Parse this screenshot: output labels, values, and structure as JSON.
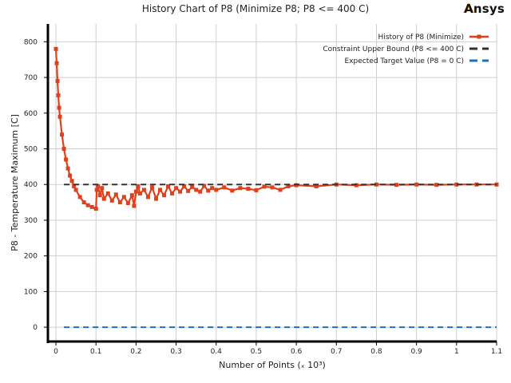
{
  "brand": {
    "name": "Ansys",
    "accent_color": "#ffb71b"
  },
  "chart_data": {
    "type": "line",
    "title": "History Chart of P8 (Minimize P8; P8 <= 400 C)",
    "xlabel": "Number of Points  (ₓ 10³)",
    "ylabel": "P8 - Temperature Maximum  [C]",
    "xlim": [
      -0.02,
      1.1
    ],
    "ylim": [
      -40,
      850
    ],
    "x_ticks": [
      0,
      0.1,
      0.2,
      0.3,
      0.4,
      0.5,
      0.6,
      0.7,
      0.8,
      0.9,
      1,
      1.1
    ],
    "x_tick_labels": [
      "0",
      "0.1",
      "0.2",
      "0.3",
      "0.4",
      "0.5",
      "0.6",
      "0.7",
      "0.8",
      "0.9",
      "1",
      "1.1"
    ],
    "y_ticks": [
      0,
      100,
      200,
      300,
      400,
      500,
      600,
      700,
      800
    ],
    "y_tick_labels": [
      "0",
      "100",
      "200",
      "300",
      "400",
      "500",
      "600",
      "700",
      "800"
    ],
    "grid": true,
    "legend_position": "top-right",
    "series": [
      {
        "name": "History of P8 (Minimize)",
        "color": "#e0401c",
        "style": "solid-with-square-markers",
        "x": [
          0,
          0.002,
          0.004,
          0.006,
          0.008,
          0.01,
          0.015,
          0.02,
          0.025,
          0.03,
          0.035,
          0.04,
          0.045,
          0.05,
          0.06,
          0.07,
          0.08,
          0.09,
          0.1,
          0.102,
          0.105,
          0.11,
          0.115,
          0.12,
          0.13,
          0.14,
          0.15,
          0.16,
          0.17,
          0.18,
          0.19,
          0.195,
          0.2,
          0.205,
          0.21,
          0.22,
          0.23,
          0.24,
          0.25,
          0.26,
          0.27,
          0.28,
          0.29,
          0.3,
          0.31,
          0.32,
          0.33,
          0.34,
          0.35,
          0.36,
          0.37,
          0.38,
          0.39,
          0.4,
          0.42,
          0.44,
          0.46,
          0.48,
          0.5,
          0.52,
          0.54,
          0.56,
          0.58,
          0.6,
          0.65,
          0.7,
          0.75,
          0.8,
          0.85,
          0.9,
          0.95,
          1.0,
          1.05,
          1.1
        ],
        "y": [
          780,
          740,
          690,
          650,
          615,
          590,
          540,
          500,
          470,
          445,
          425,
          410,
          395,
          385,
          365,
          350,
          342,
          337,
          332,
          385,
          395,
          370,
          390,
          360,
          375,
          355,
          372,
          350,
          365,
          348,
          370,
          340,
          380,
          395,
          375,
          385,
          365,
          392,
          360,
          385,
          370,
          395,
          375,
          390,
          380,
          395,
          382,
          393,
          385,
          380,
          396,
          383,
          390,
          385,
          392,
          383,
          390,
          388,
          384,
          394,
          392,
          385,
          395,
          398,
          395,
          400,
          398,
          400,
          399,
          400,
          399,
          400,
          400,
          400
        ]
      },
      {
        "name": "Constraint Upper Bound (P8 <= 400 C)",
        "color": "#333333",
        "style": "dashed",
        "x": [
          0.02,
          1.1
        ],
        "y": [
          400,
          400
        ]
      },
      {
        "name": "Expected Target Value (P8 = 0 C)",
        "color": "#1b6fc2",
        "style": "dashed",
        "x": [
          0.02,
          1.1
        ],
        "y": [
          0,
          0
        ]
      }
    ]
  }
}
